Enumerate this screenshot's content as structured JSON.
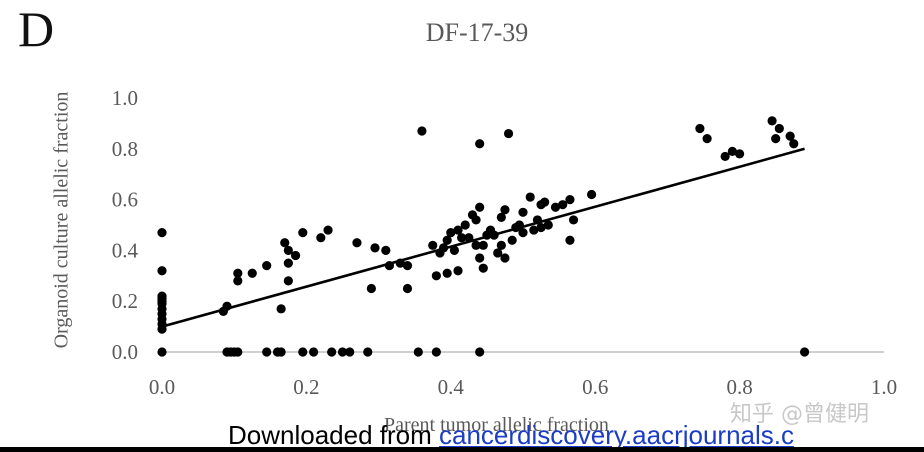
{
  "panel_label": "D",
  "footer": {
    "downloaded_text": "Downloaded from ",
    "source_link": "cancerdiscovery.aacrjournals.c"
  },
  "watermark": "知乎 @曾健明",
  "colors": {
    "point": "#000000",
    "trendline": "#000000",
    "axis": "#bfbfbf",
    "text": "#595959"
  },
  "chart_data": {
    "type": "scatter",
    "title": "DF-17-39",
    "xlabel": "Parent tumor allelic fraction",
    "ylabel": "Organoid culture allelic fraction",
    "xlim": [
      0.0,
      1.0
    ],
    "ylim": [
      0.0,
      1.0
    ],
    "xticks": [
      "0.0",
      "0.2",
      "0.4",
      "0.6",
      "0.8",
      "1.0"
    ],
    "yticks": [
      "0.0",
      "0.2",
      "0.4",
      "0.6",
      "0.8",
      "1.0"
    ],
    "grid": false,
    "legend": "none",
    "trendline": {
      "x": [
        0.0,
        0.89
      ],
      "y": [
        0.1,
        0.8
      ]
    },
    "points": [
      [
        0.0,
        0.47
      ],
      [
        0.0,
        0.32
      ],
      [
        0.0,
        0.22
      ],
      [
        0.0,
        0.21
      ],
      [
        0.0,
        0.2
      ],
      [
        0.0,
        0.19
      ],
      [
        0.0,
        0.17
      ],
      [
        0.0,
        0.15
      ],
      [
        0.0,
        0.13
      ],
      [
        0.0,
        0.11
      ],
      [
        0.0,
        0.09
      ],
      [
        0.0,
        0.0
      ],
      [
        0.085,
        0.16
      ],
      [
        0.09,
        0.18
      ],
      [
        0.105,
        0.31
      ],
      [
        0.105,
        0.28
      ],
      [
        0.125,
        0.31
      ],
      [
        0.145,
        0.34
      ],
      [
        0.165,
        0.17
      ],
      [
        0.17,
        0.43
      ],
      [
        0.175,
        0.4
      ],
      [
        0.175,
        0.35
      ],
      [
        0.175,
        0.28
      ],
      [
        0.185,
        0.38
      ],
      [
        0.195,
        0.47
      ],
      [
        0.22,
        0.45
      ],
      [
        0.23,
        0.48
      ],
      [
        0.27,
        0.43
      ],
      [
        0.29,
        0.25
      ],
      [
        0.295,
        0.41
      ],
      [
        0.31,
        0.4
      ],
      [
        0.315,
        0.34
      ],
      [
        0.33,
        0.35
      ],
      [
        0.34,
        0.34
      ],
      [
        0.34,
        0.25
      ],
      [
        0.36,
        0.87
      ],
      [
        0.375,
        0.42
      ],
      [
        0.38,
        0.3
      ],
      [
        0.385,
        0.39
      ],
      [
        0.39,
        0.41
      ],
      [
        0.395,
        0.44
      ],
      [
        0.395,
        0.31
      ],
      [
        0.4,
        0.47
      ],
      [
        0.405,
        0.4
      ],
      [
        0.41,
        0.48
      ],
      [
        0.41,
        0.32
      ],
      [
        0.415,
        0.45
      ],
      [
        0.42,
        0.5
      ],
      [
        0.425,
        0.45
      ],
      [
        0.43,
        0.54
      ],
      [
        0.435,
        0.52
      ],
      [
        0.435,
        0.42
      ],
      [
        0.44,
        0.57
      ],
      [
        0.44,
        0.37
      ],
      [
        0.44,
        0.82
      ],
      [
        0.445,
        0.42
      ],
      [
        0.445,
        0.33
      ],
      [
        0.45,
        0.46
      ],
      [
        0.455,
        0.48
      ],
      [
        0.46,
        0.46
      ],
      [
        0.465,
        0.39
      ],
      [
        0.47,
        0.53
      ],
      [
        0.47,
        0.42
      ],
      [
        0.475,
        0.56
      ],
      [
        0.475,
        0.37
      ],
      [
        0.48,
        0.86
      ],
      [
        0.485,
        0.44
      ],
      [
        0.49,
        0.49
      ],
      [
        0.495,
        0.5
      ],
      [
        0.5,
        0.55
      ],
      [
        0.5,
        0.47
      ],
      [
        0.51,
        0.61
      ],
      [
        0.515,
        0.48
      ],
      [
        0.52,
        0.52
      ],
      [
        0.525,
        0.58
      ],
      [
        0.525,
        0.49
      ],
      [
        0.53,
        0.59
      ],
      [
        0.535,
        0.5
      ],
      [
        0.545,
        0.57
      ],
      [
        0.555,
        0.58
      ],
      [
        0.565,
        0.6
      ],
      [
        0.565,
        0.44
      ],
      [
        0.57,
        0.52
      ],
      [
        0.595,
        0.62
      ],
      [
        0.745,
        0.88
      ],
      [
        0.755,
        0.84
      ],
      [
        0.78,
        0.77
      ],
      [
        0.79,
        0.79
      ],
      [
        0.8,
        0.78
      ],
      [
        0.845,
        0.91
      ],
      [
        0.85,
        0.84
      ],
      [
        0.855,
        0.88
      ],
      [
        0.87,
        0.85
      ],
      [
        0.875,
        0.82
      ],
      [
        0.09,
        0.0
      ],
      [
        0.095,
        0.0
      ],
      [
        0.1,
        0.0
      ],
      [
        0.105,
        0.0
      ],
      [
        0.145,
        0.0
      ],
      [
        0.16,
        0.0
      ],
      [
        0.165,
        0.0
      ],
      [
        0.195,
        0.0
      ],
      [
        0.21,
        0.0
      ],
      [
        0.235,
        0.0
      ],
      [
        0.25,
        0.0
      ],
      [
        0.26,
        0.0
      ],
      [
        0.285,
        0.0
      ],
      [
        0.355,
        0.0
      ],
      [
        0.38,
        0.0
      ],
      [
        0.44,
        0.0
      ],
      [
        0.89,
        0.0
      ]
    ]
  }
}
